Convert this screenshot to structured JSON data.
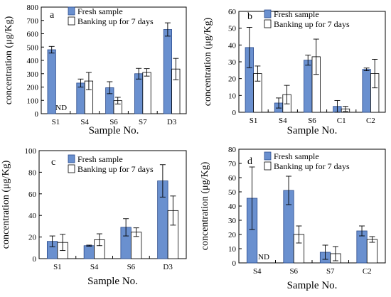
{
  "figure": {
    "background": "#ffffff"
  },
  "colors": {
    "fresh": "#6a90cf",
    "fresh_stroke": "#2b4b8c",
    "banking": "#ffffff",
    "banking_stroke": "#000000",
    "error": "#000000"
  },
  "chart_data": [
    {
      "type": "bar",
      "panel": "a",
      "ylabel": "concentration (μg/Kg)",
      "xlabel": "Sample No.",
      "ylim": [
        0,
        800
      ],
      "yticks": [
        0,
        100,
        200,
        300,
        400,
        500,
        600,
        700,
        800
      ],
      "legend_position": "top",
      "categories": [
        "S1",
        "S4",
        "S6",
        "S7",
        "D3"
      ],
      "series": [
        {
          "name": "Fresh sample",
          "values": [
            480,
            230,
            195,
            300,
            632
          ],
          "errors": [
            25,
            30,
            45,
            40,
            50
          ]
        },
        {
          "name": "Banking up for 7 days",
          "values": [
            null,
            245,
            98,
            310,
            335
          ],
          "errors": [
            null,
            65,
            25,
            28,
            80
          ]
        }
      ],
      "annotations": [
        {
          "category": "S1",
          "series": 1,
          "text": "ND"
        }
      ]
    },
    {
      "type": "bar",
      "panel": "b",
      "ylabel": "concentration (μg/Kg)",
      "xlabel": "Sample No.",
      "ylim": [
        0,
        60
      ],
      "yticks": [
        0,
        10,
        20,
        30,
        40,
        50,
        60
      ],
      "legend_position": "top",
      "categories": [
        "S1",
        "S4",
        "S6",
        "C1",
        "C2"
      ],
      "series": [
        {
          "name": "Fresh sample",
          "values": [
            38.5,
            5.5,
            31,
            3.5,
            25.5
          ],
          "errors": [
            12,
            3,
            3,
            3.5,
            0.8
          ]
        },
        {
          "name": "Banking up for 7 days",
          "values": [
            23,
            10.5,
            33,
            2,
            23
          ],
          "errors": [
            4.5,
            5.5,
            10.5,
            1.5,
            8.5
          ]
        }
      ],
      "annotations": []
    },
    {
      "type": "bar",
      "panel": "c",
      "ylabel": "concentration (μg/Kg)",
      "xlabel": "Sample No.",
      "ylim": [
        0,
        100
      ],
      "yticks": [
        0,
        20,
        40,
        60,
        80,
        100
      ],
      "legend_position": "top",
      "categories": [
        "S1",
        "S4",
        "S6",
        "D3"
      ],
      "series": [
        {
          "name": "Fresh sample",
          "values": [
            16,
            12,
            29,
            72
          ],
          "errors": [
            5,
            0.5,
            8,
            15
          ]
        },
        {
          "name": "Banking up for 7 days",
          "values": [
            15,
            17.5,
            24.5,
            44.5
          ],
          "errors": [
            7.5,
            5.5,
            4,
            13.5
          ]
        }
      ],
      "annotations": []
    },
    {
      "type": "bar",
      "panel": "d",
      "ylabel": "concentration (μg/Kg)",
      "xlabel": "Sample No.",
      "ylim": [
        0,
        80
      ],
      "yticks": [
        0,
        10,
        20,
        30,
        40,
        50,
        60,
        70,
        80
      ],
      "legend_position": "top",
      "categories": [
        "S4",
        "S6",
        "S7",
        "C2"
      ],
      "series": [
        {
          "name": "Fresh sample",
          "values": [
            45.5,
            51,
            7.5,
            22.5
          ],
          "errors": [
            22,
            10,
            5,
            3.5
          ]
        },
        {
          "name": "Banking up for 7 days",
          "values": [
            null,
            20,
            6.5,
            16.5
          ],
          "errors": [
            null,
            6,
            5,
            2
          ]
        }
      ],
      "annotations": [
        {
          "category": "S4",
          "series": 1,
          "text": "ND"
        }
      ]
    }
  ]
}
